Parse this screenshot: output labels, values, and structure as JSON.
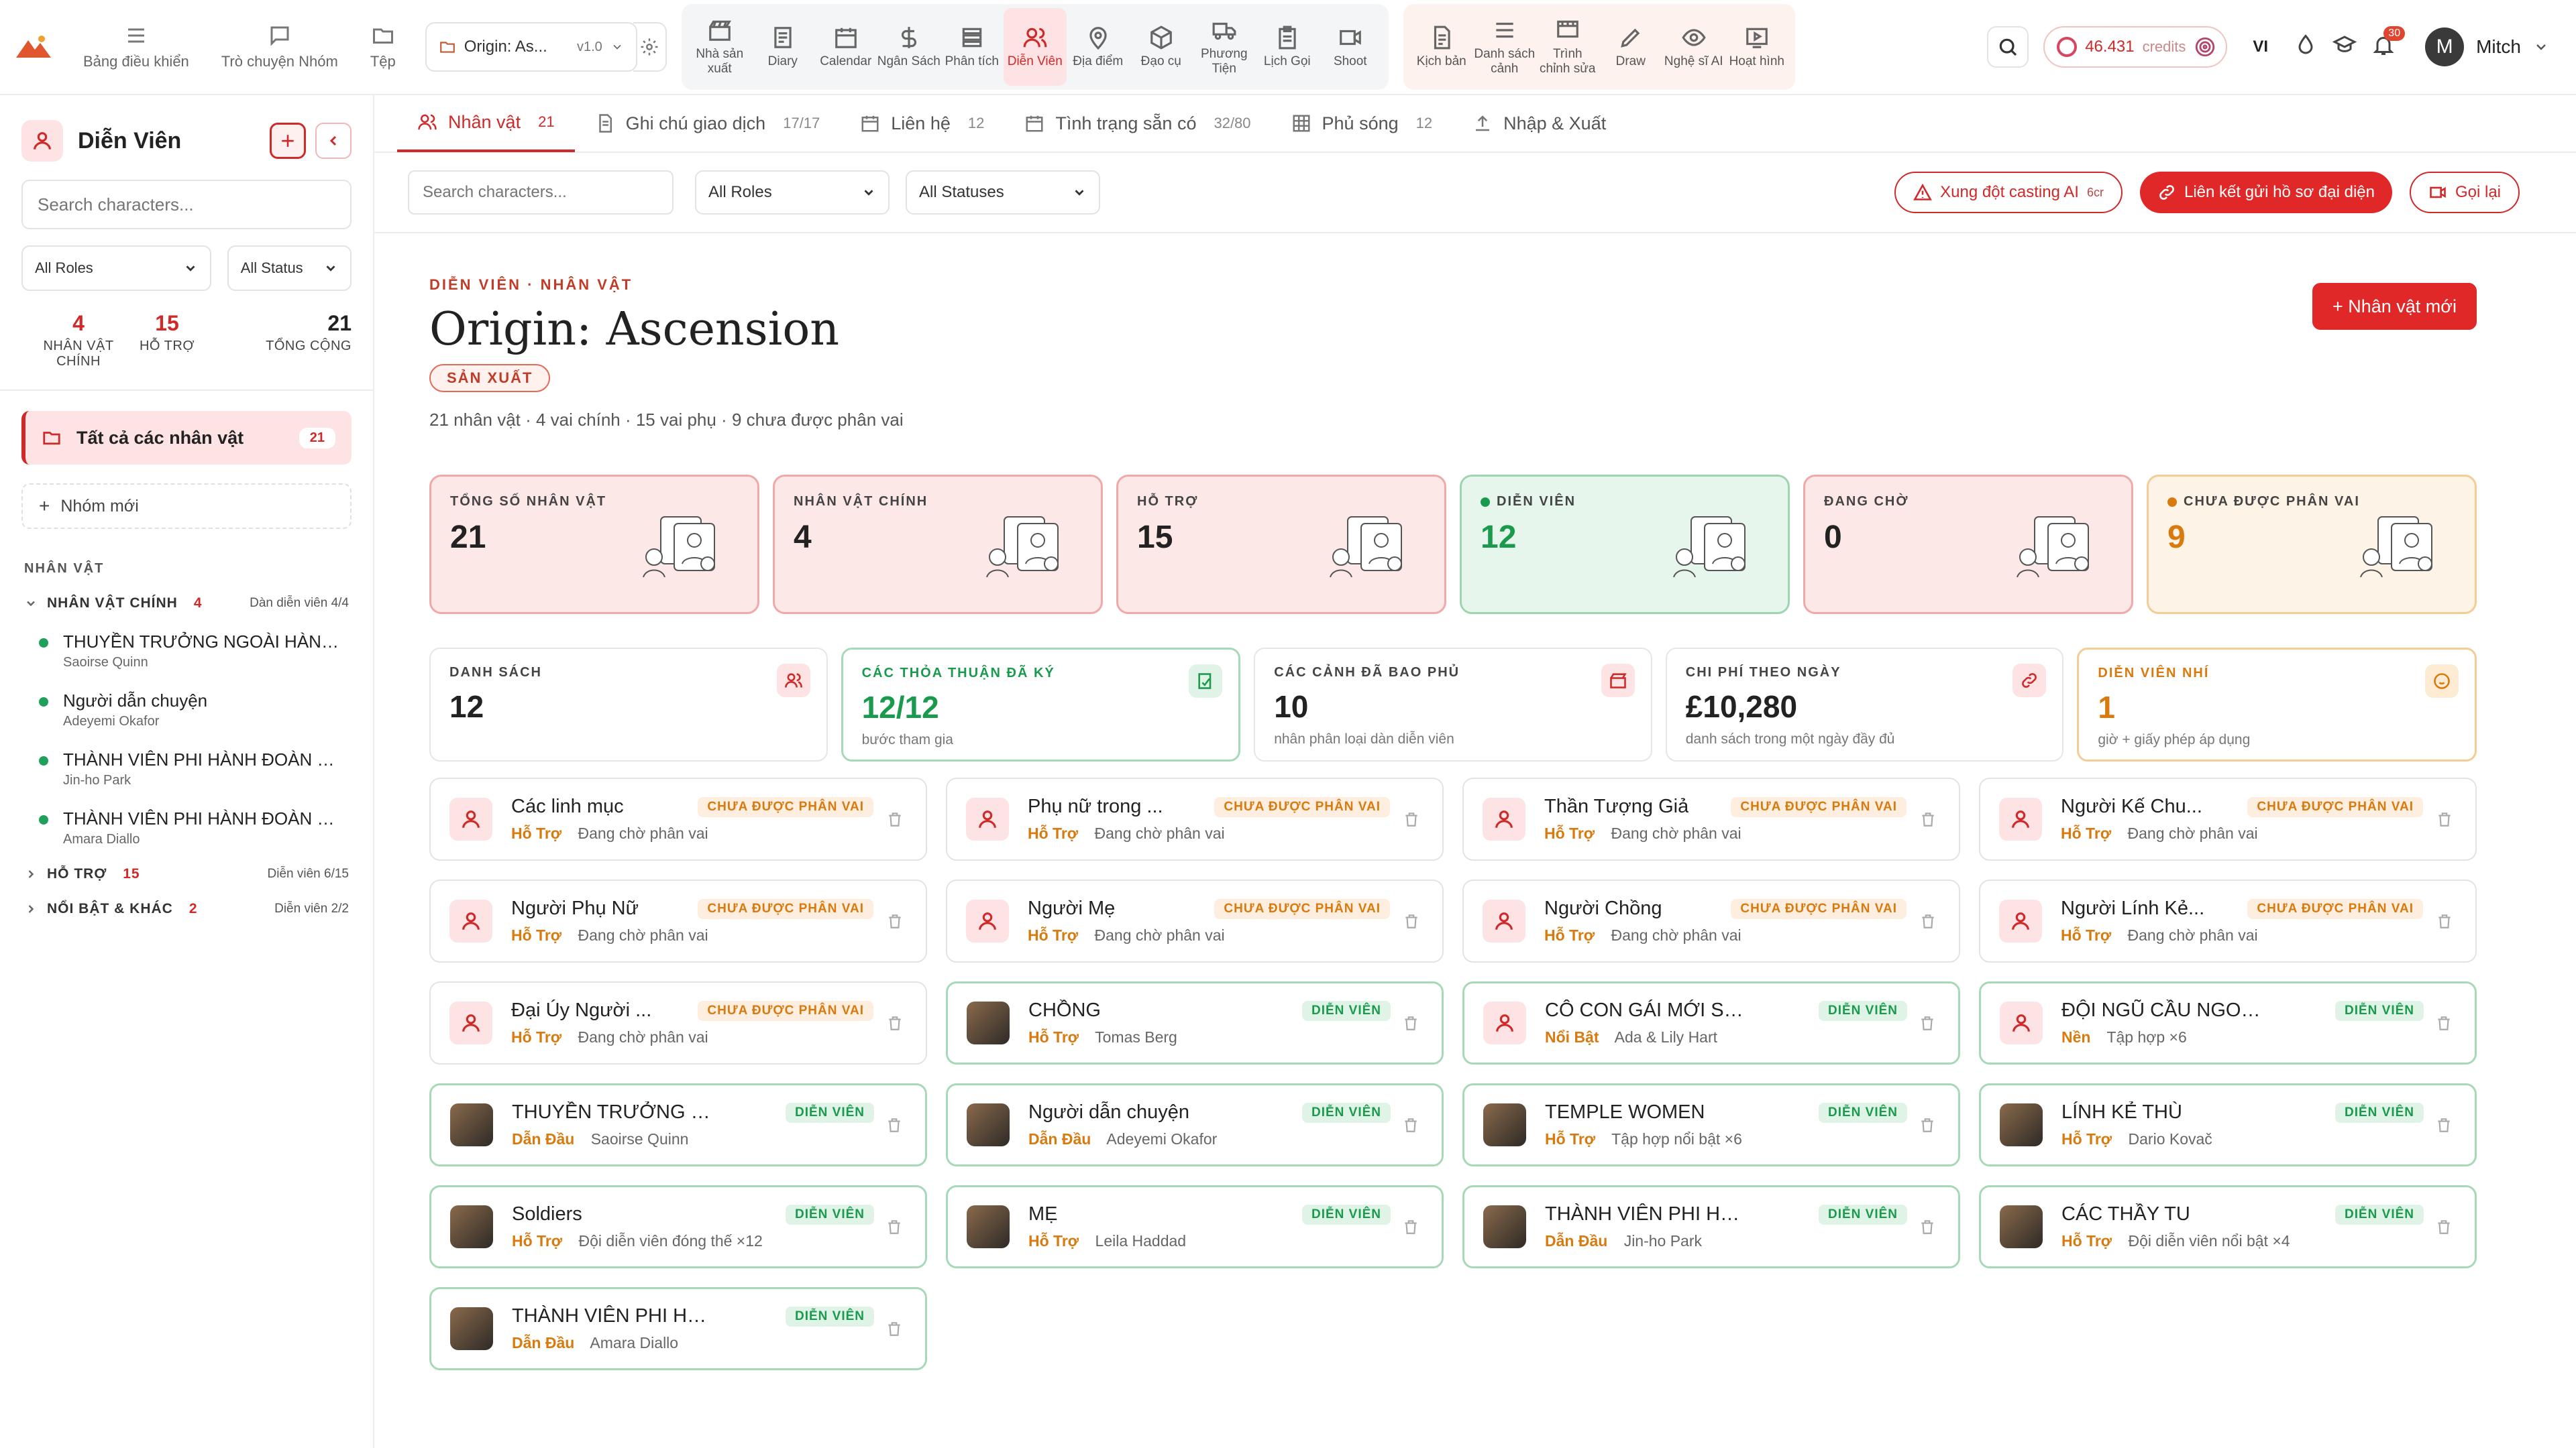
{
  "topbar": {
    "nav": [
      {
        "label": "Bảng điều khiển",
        "icon": "menu-icon"
      },
      {
        "label": "Trò chuyện Nhóm",
        "icon": "chat-icon"
      },
      {
        "label": "Tệp",
        "icon": "folder-icon"
      }
    ],
    "project": {
      "name": "Origin: As...",
      "version": "v1.0"
    },
    "tools": [
      {
        "label": "Nhà sản xuất",
        "icon": "clapper-icon",
        "active": false
      },
      {
        "label": "Diary",
        "icon": "diary-icon",
        "active": false
      },
      {
        "label": "Calendar",
        "icon": "calendar-icon",
        "active": false
      },
      {
        "label": "Ngân Sách",
        "icon": "dollar-icon",
        "active": false
      },
      {
        "label": "Phân tích",
        "icon": "stack-icon",
        "active": false
      },
      {
        "label": "Diễn Viên",
        "icon": "people-icon",
        "active": true
      },
      {
        "label": "Địa điểm",
        "icon": "pin-icon",
        "active": false
      },
      {
        "label": "Đạo cụ",
        "icon": "box-icon",
        "active": false
      },
      {
        "label": "Phương Tiện",
        "icon": "truck-icon",
        "active": false
      },
      {
        "label": "Lịch Gọi",
        "icon": "clipboard-icon",
        "active": false
      },
      {
        "label": "Shoot",
        "icon": "video-icon",
        "active": false
      }
    ],
    "tools2": [
      {
        "label": "Kịch bản",
        "icon": "script-icon"
      },
      {
        "label": "Danh sách cảnh",
        "icon": "list-icon"
      },
      {
        "label": "Trình chỉnh sửa",
        "icon": "editor-icon"
      },
      {
        "label": "Draw",
        "icon": "pen-icon"
      },
      {
        "label": "Nghệ sĩ AI",
        "icon": "eye-icon"
      },
      {
        "label": "Hoạt hình",
        "icon": "play-icon"
      }
    ],
    "credits": {
      "amount": "46.431",
      "unit": "credits"
    },
    "language": "VI",
    "notifications": "30",
    "user": {
      "initial": "M",
      "name": "Mitch"
    }
  },
  "sidebar": {
    "title": "Diễn Viên",
    "search_placeholder": "Search characters...",
    "role_filter": "All Roles",
    "status_filter": "All Status",
    "stats": [
      {
        "value": "4",
        "label": "NHÂN VẬT CHÍNH",
        "color": "#d02929"
      },
      {
        "value": "15",
        "label": "HỖ TRỢ",
        "color": "#d02929"
      },
      {
        "value": "21",
        "label": "TỔNG CỘNG",
        "color": "#222222"
      }
    ],
    "all_label": "Tất cả các nhân vật",
    "all_count": "21",
    "new_group": "Nhóm mới",
    "section": "NHÂN VẬT",
    "groups": [
      {
        "name": "NHÂN VẬT CHÍNH",
        "count": "4",
        "right": "Dàn diễn viên 4/4",
        "expanded": true,
        "chars": [
          {
            "name": "THUYỀN TRƯỞNG NGOÀI HÀNH TINH",
            "actor": "Saoirse Quinn"
          },
          {
            "name": "Người dẫn chuyện",
            "actor": "Adeyemi Okafor"
          },
          {
            "name": "THÀNH VIÊN PHI HÀNH ĐOÀN NGOÀI HÀNH TINH",
            "actor": "Jin-ho Park"
          },
          {
            "name": "THÀNH VIÊN PHI HÀNH ĐOÀN NGOÀI HÀNH TINH",
            "actor": "Amara Diallo"
          }
        ]
      },
      {
        "name": "HỖ TRỢ",
        "count": "15",
        "right": "Diễn viên 6/15",
        "expanded": false,
        "chars": []
      },
      {
        "name": "NỔI BẬT & KHÁC",
        "count": "2",
        "right": "Diễn viên 2/2",
        "expanded": false,
        "chars": []
      }
    ]
  },
  "tabs": [
    {
      "label": "Nhân vật",
      "count": "21",
      "icon": "people-icon",
      "active": true
    },
    {
      "label": "Ghi chú giao dịch",
      "count": "17/17",
      "icon": "note-icon",
      "active": false
    },
    {
      "label": "Liên hệ",
      "count": "12",
      "icon": "calendar-icon",
      "active": false
    },
    {
      "label": "Tình trạng sẵn có",
      "count": "32/80",
      "icon": "calendar-icon",
      "active": false
    },
    {
      "label": "Phủ sóng",
      "count": "12",
      "icon": "grid-icon",
      "active": false
    },
    {
      "label": "Nhập & Xuất",
      "count": "",
      "icon": "upload-icon",
      "active": false
    }
  ],
  "filters": {
    "search_placeholder": "Search characters...",
    "roles": "All Roles",
    "statuses": "All Statuses",
    "conflict_label": "Xung đột casting AI",
    "conflict_cost": "6cr",
    "link_label": "Liên kết gửi hồ sơ đại diện",
    "recall_label": "Gọi lại"
  },
  "header": {
    "eyebrow": "DIỄN VIÊN · NHÂN VẬT",
    "title": "Origin: Ascension",
    "tag": "SẢN XUẤT",
    "subtitle": "21 nhân vật · 4 vai chính · 15 vai phụ · 9 chưa được phân vai",
    "new_button": "+ Nhân vật mới"
  },
  "kpis": [
    {
      "label": "TỔNG SỐ NHÂN VẬT",
      "value": "21",
      "tone": "red",
      "dot": ""
    },
    {
      "label": "NHÂN VẬT CHÍNH",
      "value": "4",
      "tone": "red",
      "dot": ""
    },
    {
      "label": "HỖ TRỢ",
      "value": "15",
      "tone": "red",
      "dot": ""
    },
    {
      "label": "DIỄN VIÊN",
      "value": "12",
      "tone": "green",
      "dot": "#1a9a4d"
    },
    {
      "label": "ĐANG CHỜ",
      "value": "0",
      "tone": "red",
      "dot": ""
    },
    {
      "label": "CHƯA ĐƯỢC PHÂN VAI",
      "value": "9",
      "tone": "orange",
      "dot": "#d97a0e"
    }
  ],
  "metrics": [
    {
      "label": "DANH SÁCH",
      "value": "12",
      "sub": "",
      "tone": "plain",
      "icon": "people-icon"
    },
    {
      "label": "CÁC THỎA THUẬN ĐÃ KÝ",
      "value": "12/12",
      "sub": "bước tham gia",
      "tone": "green",
      "icon": "signed-icon"
    },
    {
      "label": "CÁC CẢNH ĐÃ BAO PHỦ",
      "value": "10",
      "sub": "nhân phân loại dàn diễn viên",
      "tone": "plain",
      "icon": "clapper-icon"
    },
    {
      "label": "CHI PHÍ THEO NGÀY",
      "value": "£10,280",
      "sub": "danh sách trong một ngày đầy đủ",
      "tone": "plain",
      "icon": "link-icon"
    },
    {
      "label": "DIỄN VIÊN NHÍ",
      "value": "1",
      "sub": "giờ + giấy phép áp dụng",
      "tone": "orange",
      "icon": "child-icon"
    }
  ],
  "characters": [
    {
      "name": "Các linh mục",
      "role": "Hỗ Trợ",
      "actor": "Đang chờ phân vai",
      "status": "CHƯA ĐƯỢC PHÂN VAI",
      "cast": false,
      "photo": false
    },
    {
      "name": "Phụ nữ trong ...",
      "role": "Hỗ Trợ",
      "actor": "Đang chờ phân vai",
      "status": "CHƯA ĐƯỢC PHÂN VAI",
      "cast": false,
      "photo": false
    },
    {
      "name": "Thần Tượng Giả",
      "role": "Hỗ Trợ",
      "actor": "Đang chờ phân vai",
      "status": "CHƯA ĐƯỢC PHÂN VAI",
      "cast": false,
      "photo": false
    },
    {
      "name": "Người Kế Chu...",
      "role": "Hỗ Trợ",
      "actor": "Đang chờ phân vai",
      "status": "CHƯA ĐƯỢC PHÂN VAI",
      "cast": false,
      "photo": false
    },
    {
      "name": "Người Phụ Nữ",
      "role": "Hỗ Trợ",
      "actor": "Đang chờ phân vai",
      "status": "CHƯA ĐƯỢC PHÂN VAI",
      "cast": false,
      "photo": false
    },
    {
      "name": "Người Mẹ",
      "role": "Hỗ Trợ",
      "actor": "Đang chờ phân vai",
      "status": "CHƯA ĐƯỢC PHÂN VAI",
      "cast": false,
      "photo": false
    },
    {
      "name": "Người Chồng",
      "role": "Hỗ Trợ",
      "actor": "Đang chờ phân vai",
      "status": "CHƯA ĐƯỢC PHÂN VAI",
      "cast": false,
      "photo": false
    },
    {
      "name": "Người Lính Kẻ...",
      "role": "Hỗ Trợ",
      "actor": "Đang chờ phân vai",
      "status": "CHƯA ĐƯỢC PHÂN VAI",
      "cast": false,
      "photo": false
    },
    {
      "name": "Đại Úy Người ...",
      "role": "Hỗ Trợ",
      "actor": "Đang chờ phân vai",
      "status": "CHƯA ĐƯỢC PHÂN VAI",
      "cast": false,
      "photo": false
    },
    {
      "name": "CHỒNG",
      "role": "Hỗ Trợ",
      "actor": "Tomas Berg",
      "status": "DIỄN VIÊN",
      "cast": true,
      "photo": true
    },
    {
      "name": "CÔ CON GÁI MỚI SINH",
      "role": "Nổi Bật",
      "actor": "Ada & Lily Hart",
      "status": "DIỄN VIÊN",
      "cast": true,
      "photo": false
    },
    {
      "name": "ĐỘI NGŨ CẦU NGOÀI H...",
      "role": "Nền",
      "actor": "Tập hợp ×6",
      "status": "DIỄN VIÊN",
      "cast": true,
      "photo": false
    },
    {
      "name": "THUYỀN TRƯỞNG NGO...",
      "role": "Dẫn Đầu",
      "actor": "Saoirse Quinn",
      "status": "DIỄN VIÊN",
      "cast": true,
      "photo": true
    },
    {
      "name": "Người dẫn chuyện",
      "role": "Dẫn Đầu",
      "actor": "Adeyemi Okafor",
      "status": "DIỄN VIÊN",
      "cast": true,
      "photo": true
    },
    {
      "name": "TEMPLE WOMEN",
      "role": "Hỗ Trợ",
      "actor": "Tập hợp nổi bật ×6",
      "status": "DIỄN VIÊN",
      "cast": true,
      "photo": true
    },
    {
      "name": "LÍNH KẺ THÙ",
      "role": "Hỗ Trợ",
      "actor": "Dario Kovač",
      "status": "DIỄN VIÊN",
      "cast": true,
      "photo": true
    },
    {
      "name": "Soldiers",
      "role": "Hỗ Trợ",
      "actor": "Đội diễn viên đóng thế ×12",
      "status": "DIỄN VIÊN",
      "cast": true,
      "photo": true
    },
    {
      "name": "MẸ",
      "role": "Hỗ Trợ",
      "actor": "Leila Haddad",
      "status": "DIỄN VIÊN",
      "cast": true,
      "photo": true
    },
    {
      "name": "THÀNH VIÊN PHI HÀNH ...",
      "role": "Dẫn Đầu",
      "actor": "Jin-ho Park",
      "status": "DIỄN VIÊN",
      "cast": true,
      "photo": true
    },
    {
      "name": "CÁC THẦY TU",
      "role": "Hỗ Trợ",
      "actor": "Đội diễn viên nổi bật ×4",
      "status": "DIỄN VIÊN",
      "cast": true,
      "photo": true
    },
    {
      "name": "THÀNH VIÊN PHI HÀNH ...",
      "role": "Dẫn Đầu",
      "actor": "Amara Diallo",
      "status": "DIỄN VIÊN",
      "cast": true,
      "photo": true
    }
  ]
}
